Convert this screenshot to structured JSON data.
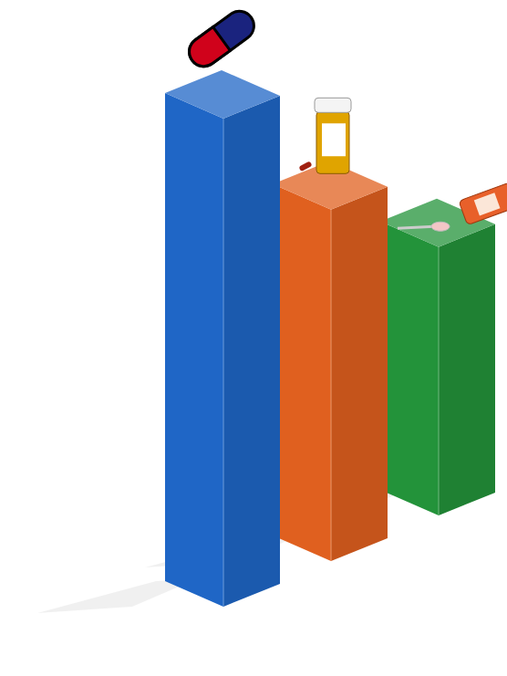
{
  "chart_data": {
    "type": "bar",
    "categories": [
      null,
      null,
      null
    ],
    "values": [
      100,
      72,
      55
    ],
    "colors": [
      "#1f66c6",
      "#e0601f",
      "#23933a"
    ],
    "ylim": [
      0,
      100
    ],
    "grid": false,
    "tick_labels": false
  }
}
